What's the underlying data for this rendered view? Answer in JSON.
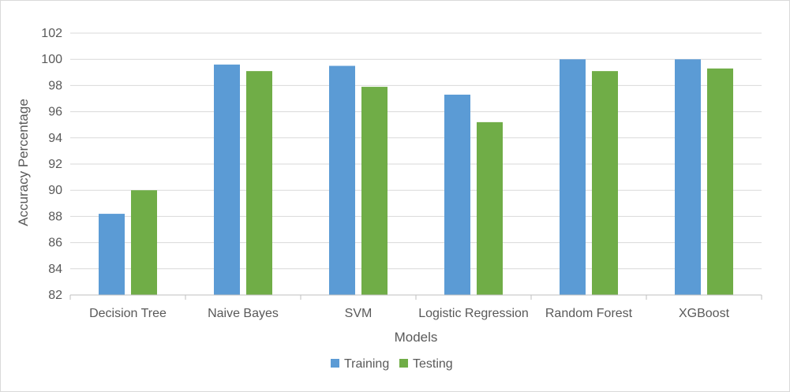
{
  "chart_data": {
    "type": "bar",
    "title": "",
    "xlabel": "Models",
    "ylabel": "Accuracy Percentage",
    "ylim": [
      82,
      102
    ],
    "yticks": [
      82,
      84,
      86,
      88,
      90,
      92,
      94,
      96,
      98,
      100,
      102
    ],
    "grid": true,
    "legend_position": "bottom",
    "categories": [
      "Decision Tree",
      "Naive Bayes",
      "SVM",
      "Logistic Regression",
      "Random Forest",
      "XGBoost"
    ],
    "series": [
      {
        "name": "Training",
        "color": "#5b9bd5",
        "values": [
          88.2,
          99.6,
          99.5,
          97.3,
          100,
          100
        ]
      },
      {
        "name": "Testing",
        "color": "#70ad47",
        "values": [
          90.0,
          99.1,
          97.9,
          95.2,
          99.1,
          99.3
        ]
      }
    ]
  }
}
